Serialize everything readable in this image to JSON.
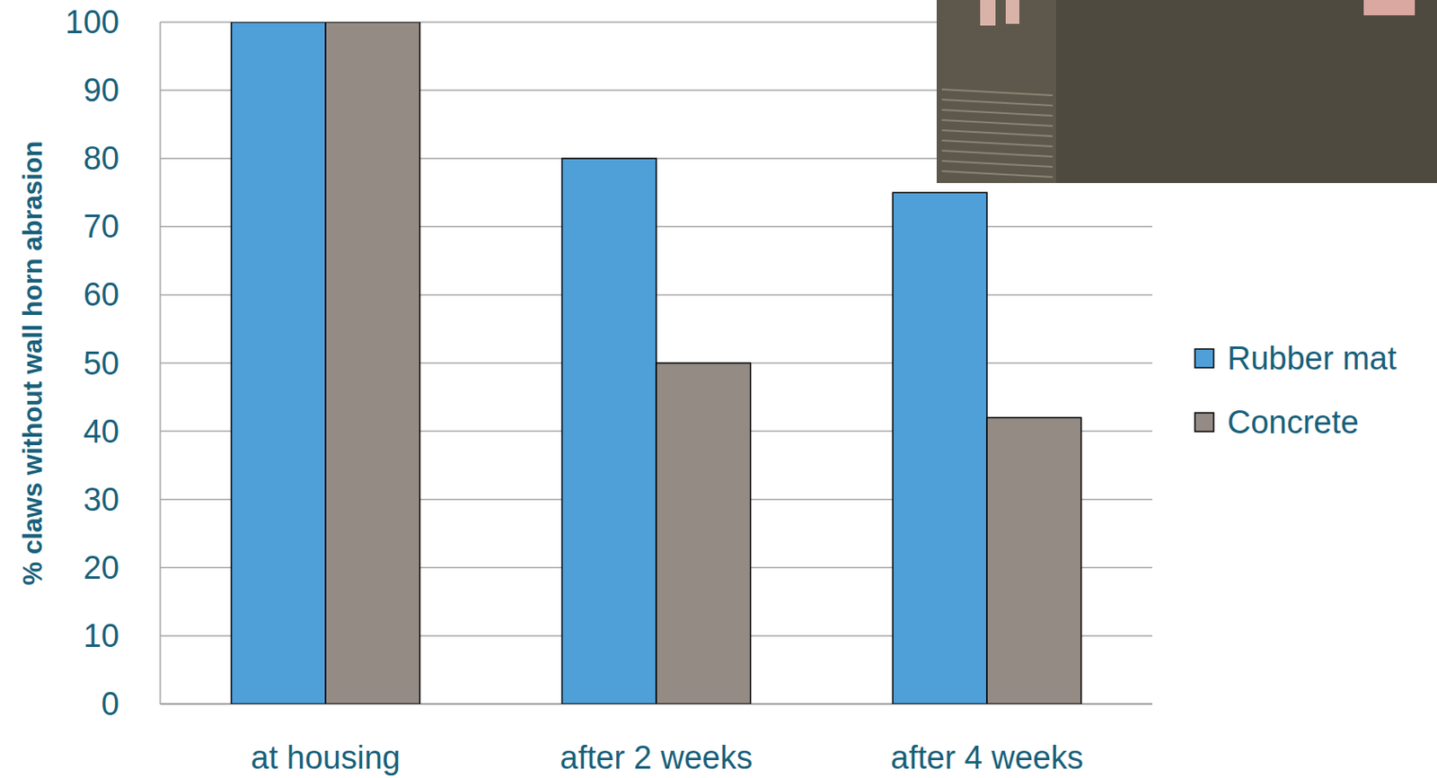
{
  "chart_data": {
    "type": "bar",
    "categories": [
      "at housing",
      "after 2 weeks",
      "after 4 weeks"
    ],
    "series": [
      {
        "name": "Rubber mat",
        "color": "#4f9fd8",
        "values": [
          100,
          80,
          75
        ]
      },
      {
        "name": "Concrete",
        "color": "#948b85",
        "values": [
          100,
          50,
          42
        ]
      }
    ],
    "y_label": "% claws without wall horn abrasion",
    "ylim": [
      0,
      100
    ],
    "yticks": [
      0,
      10,
      20,
      30,
      40,
      50,
      60,
      70,
      80,
      90,
      100
    ],
    "grid": true,
    "legend": "right"
  }
}
